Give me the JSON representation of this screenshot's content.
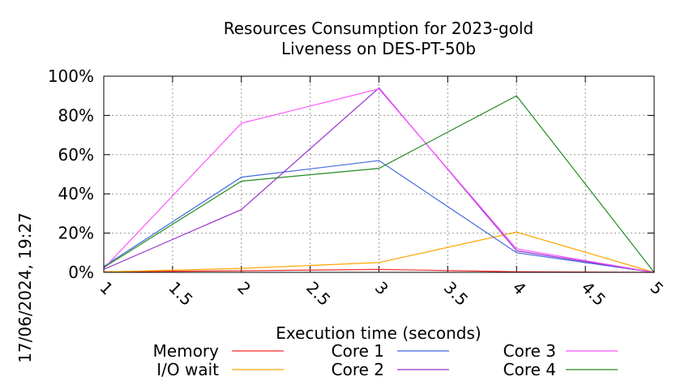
{
  "timestamp": "17/06/2024, 19:27",
  "chart_data": {
    "type": "line",
    "title": "Resources Consumption for 2023-gold",
    "subtitle": "Liveness on DES-PT-50b",
    "xlabel": "Execution time (seconds)",
    "ylabel": "",
    "xlim": [
      1,
      5
    ],
    "ylim": [
      0,
      100
    ],
    "x_ticks": [
      "1",
      "1.5",
      "2",
      "2.5",
      "3",
      "3.5",
      "4",
      "4.5",
      "5"
    ],
    "y_ticks": [
      "0%",
      "20%",
      "40%",
      "60%",
      "80%",
      "100%"
    ],
    "grid": true,
    "legend_position": "bottom",
    "x": [
      1,
      2,
      3,
      4,
      5
    ],
    "series": [
      {
        "name": "Memory",
        "color": "#ff2a2a",
        "values": [
          0.3,
          0.8,
          1.5,
          0.3,
          0
        ]
      },
      {
        "name": "I/O wait",
        "color": "#ffa500",
        "values": [
          0.2,
          2,
          5,
          20.5,
          0
        ]
      },
      {
        "name": "Core 1",
        "color": "#4169e1",
        "values": [
          3,
          48.5,
          57,
          10,
          0
        ]
      },
      {
        "name": "Core 2",
        "color": "#9932cc",
        "values": [
          1.5,
          32,
          94,
          11,
          0
        ]
      },
      {
        "name": "Core 3",
        "color": "#ff55ff",
        "values": [
          2,
          76,
          93.5,
          12,
          0
        ]
      },
      {
        "name": "Core 4",
        "color": "#228b22",
        "values": [
          2.5,
          46.5,
          53,
          90,
          0
        ]
      }
    ]
  }
}
